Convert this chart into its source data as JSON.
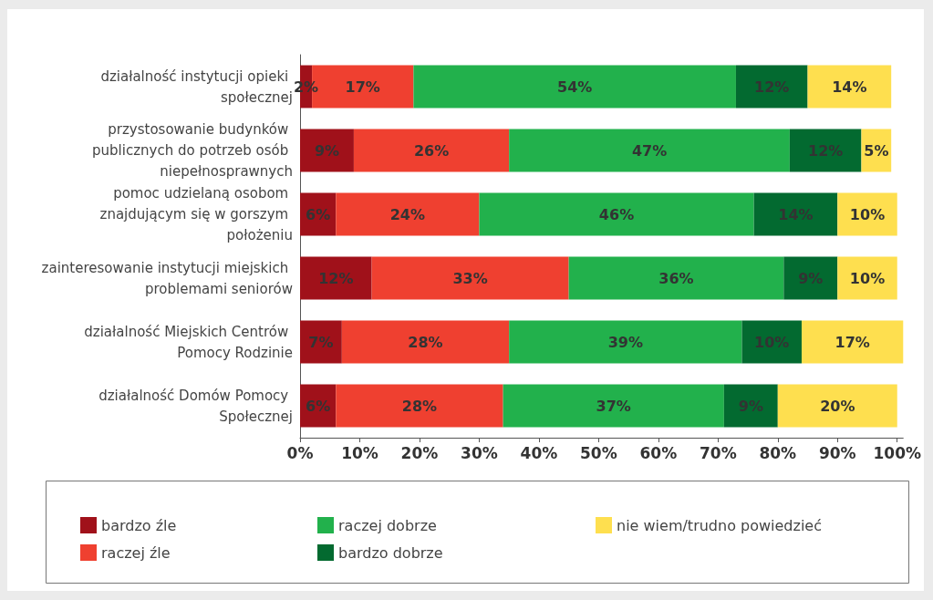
{
  "chart_data": {
    "type": "bar",
    "orientation": "horizontal",
    "stacked": true,
    "categories": [
      "działalność instytucji opieki społecznej",
      "przystosowanie budynków publicznych do potrzeb osób niepełnosprawnych",
      "pomoc udzielaną osobom znajdującym się w gorszym położeniu",
      "zainteresowanie instytucji miejskich problemami seniorów",
      "działalność Miejskich Centrów Pomocy Rodzinie",
      "działalność Domów Pomocy Społecznej"
    ],
    "series": [
      {
        "name": "bardzo źle",
        "color": "#a0111a",
        "values": [
          2,
          9,
          6,
          12,
          7,
          6
        ],
        "value_labels": [
          "2%",
          "9%",
          "6%",
          "12%",
          "7%",
          "6%"
        ]
      },
      {
        "name": "raczej źle",
        "color": "#ef4030",
        "values": [
          17,
          26,
          24,
          33,
          28,
          28
        ],
        "value_labels": [
          "17%",
          "26%",
          "24%",
          "33%",
          "28%",
          "28%"
        ]
      },
      {
        "name": "raczej dobrze",
        "color": "#22b14c",
        "values": [
          54,
          47,
          46,
          36,
          39,
          37
        ],
        "value_labels": [
          "54%",
          "47%",
          "46%",
          "36%",
          "39%",
          "37%"
        ]
      },
      {
        "name": "bardzo dobrze",
        "color": "#036a30",
        "values": [
          12,
          12,
          14,
          9,
          10,
          9
        ],
        "value_labels": [
          "12%",
          "12%",
          "14%",
          "9%",
          "10%",
          "9%"
        ]
      },
      {
        "name": "nie wiem/trudno powiedzieć",
        "color": "#fedf4f",
        "values": [
          14,
          5,
          10,
          10,
          17,
          20
        ],
        "value_labels": [
          "14%",
          "5%",
          "10%",
          "10%",
          "17%",
          "20%"
        ]
      }
    ],
    "xlim": [
      0,
      101
    ],
    "xticks": [
      {
        "value": 0,
        "label": "0%"
      },
      {
        "value": 10,
        "label": "10%"
      },
      {
        "value": 20,
        "label": "20%"
      },
      {
        "value": 30,
        "label": "30%"
      },
      {
        "value": 40,
        "label": "40%"
      },
      {
        "value": 50,
        "label": "50%"
      },
      {
        "value": 60,
        "label": "60%"
      },
      {
        "value": 70,
        "label": "70%"
      },
      {
        "value": 80,
        "label": "80%"
      },
      {
        "value": 90,
        "label": "90%"
      },
      {
        "value": 100,
        "label": "100%"
      }
    ],
    "grid": false,
    "legend": "bottom"
  }
}
